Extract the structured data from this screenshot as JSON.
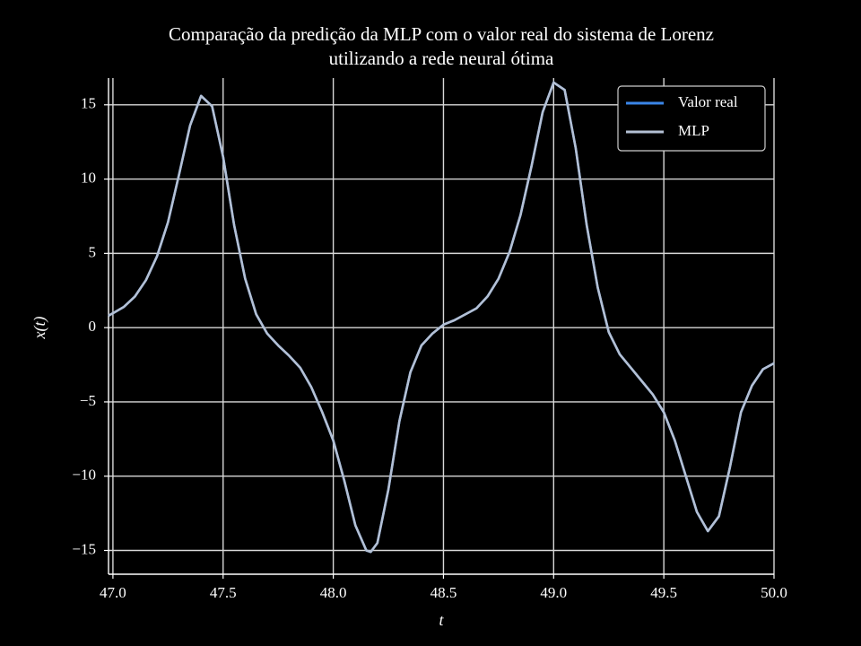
{
  "chart_data": {
    "type": "line",
    "title": [
      "Comparação da predição da MLP com o valor real do sistema de Lorenz",
      "utilizando a rede neural ótima"
    ],
    "xlabel": "t",
    "ylabel": "x(t)",
    "x": [
      46.98,
      47.05,
      47.1,
      47.15,
      47.2,
      47.25,
      47.3,
      47.35,
      47.4,
      47.45,
      47.5,
      47.55,
      47.6,
      47.65,
      47.7,
      47.75,
      47.8,
      47.85,
      47.9,
      47.95,
      48.0,
      48.05,
      48.1,
      48.15,
      48.17,
      48.2,
      48.25,
      48.3,
      48.35,
      48.4,
      48.45,
      48.5,
      48.55,
      48.6,
      48.65,
      48.7,
      48.75,
      48.8,
      48.85,
      48.9,
      48.95,
      49.0,
      49.05,
      49.1,
      49.15,
      49.2,
      49.25,
      49.3,
      49.35,
      49.4,
      49.45,
      49.5,
      49.55,
      49.6,
      49.65,
      49.7,
      49.75,
      49.8,
      49.85,
      49.9,
      49.95,
      50.0
    ],
    "series": [
      {
        "name": "Valor real",
        "color": "#3a86e8",
        "values": [
          0.8,
          1.4,
          2.1,
          3.2,
          4.8,
          7.1,
          10.3,
          13.6,
          15.6,
          14.9,
          11.5,
          6.9,
          3.3,
          0.9,
          -0.4,
          -1.2,
          -1.9,
          -2.7,
          -4.0,
          -5.7,
          -7.6,
          -10.3,
          -13.3,
          -15.0,
          -15.1,
          -14.5,
          -10.9,
          -6.3,
          -3.0,
          -1.2,
          -0.4,
          0.2,
          0.5,
          0.9,
          1.3,
          2.1,
          3.3,
          5.1,
          7.6,
          10.9,
          14.5,
          16.5,
          16.0,
          12.1,
          6.9,
          2.7,
          -0.3,
          -1.8,
          -2.7,
          -3.6,
          -4.5,
          -5.7,
          -7.6,
          -10.0,
          -12.4,
          -13.7,
          -12.7,
          -9.4,
          -5.7,
          -3.9,
          -2.8,
          -2.4
        ]
      },
      {
        "name": "MLP",
        "color": "#b4c0d4",
        "values": [
          0.8,
          1.4,
          2.1,
          3.2,
          4.8,
          7.1,
          10.3,
          13.6,
          15.6,
          14.9,
          11.5,
          6.9,
          3.3,
          0.9,
          -0.4,
          -1.2,
          -1.9,
          -2.7,
          -4.0,
          -5.7,
          -7.6,
          -10.3,
          -13.3,
          -15.0,
          -15.1,
          -14.5,
          -10.9,
          -6.3,
          -3.0,
          -1.2,
          -0.4,
          0.2,
          0.5,
          0.9,
          1.3,
          2.1,
          3.3,
          5.1,
          7.6,
          10.9,
          14.5,
          16.5,
          16.0,
          12.1,
          6.9,
          2.7,
          -0.3,
          -1.8,
          -2.7,
          -3.6,
          -4.5,
          -5.7,
          -7.6,
          -10.0,
          -12.4,
          -13.7,
          -12.7,
          -9.4,
          -5.7,
          -3.9,
          -2.8,
          -2.4
        ]
      }
    ],
    "xlim": [
      46.98,
      50.0
    ],
    "xticks": [
      {
        "value": 47,
        "label": "47.0"
      },
      47.5,
      {
        "value": 48,
        "label": "48.0"
      },
      48.5,
      {
        "value": 49,
        "label": "49.0"
      },
      49.5,
      {
        "value": 50,
        "label": "50.0"
      }
    ],
    "ylim": [
      -16.6,
      16.8
    ],
    "yticks": [
      {
        "value": -15,
        "label": "−15"
      },
      {
        "value": -10,
        "label": "−10"
      },
      {
        "value": -5,
        "label": "−5"
      },
      0,
      5,
      10,
      15
    ],
    "grid": true,
    "legend": "upper right"
  }
}
